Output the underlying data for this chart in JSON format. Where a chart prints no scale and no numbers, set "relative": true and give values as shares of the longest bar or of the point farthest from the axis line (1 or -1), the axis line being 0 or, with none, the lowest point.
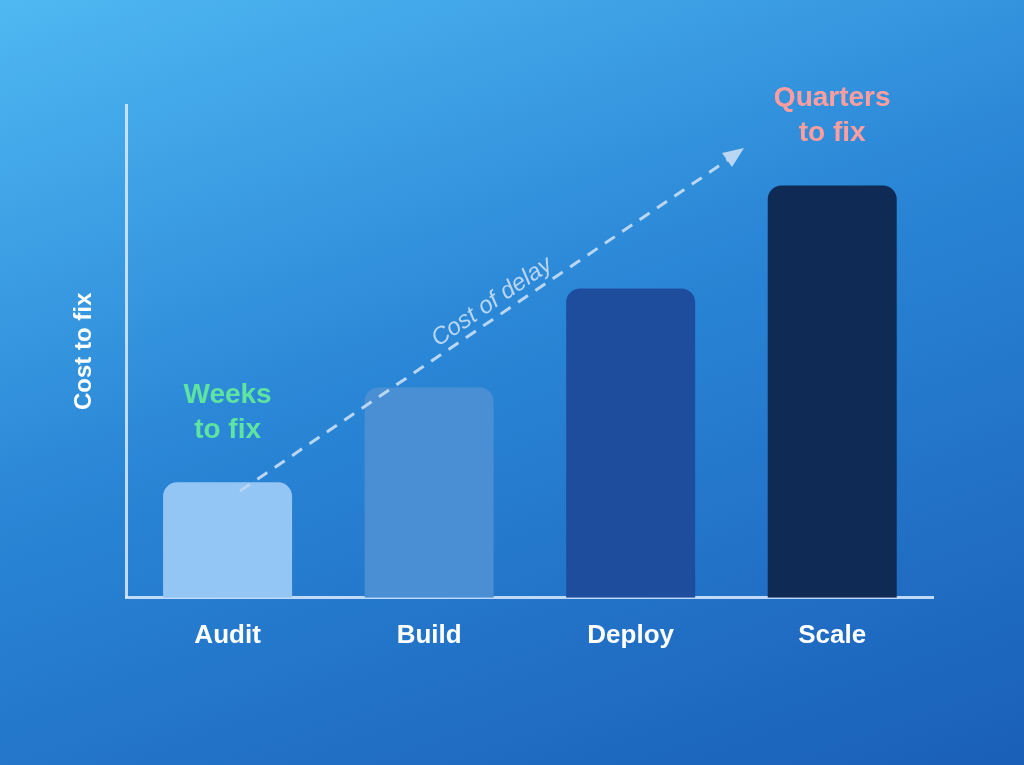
{
  "chart_data": {
    "type": "bar",
    "relative": true,
    "ylabel": "Cost to fix",
    "categories": [
      "Audit",
      "Build",
      "Deploy",
      "Scale"
    ],
    "values": [
      0.28,
      0.51,
      0.75,
      1
    ],
    "colors": [
      "#93c5f5",
      "#4a8fd4",
      "#1e4d9e",
      "#0f2a55"
    ],
    "grid": false,
    "legend": false,
    "annotations": [
      {
        "text": "Weeks to fix",
        "x": "Audit",
        "y": 0.28
      },
      {
        "text": "Quarters to fix",
        "x": "Scale",
        "y": 1
      },
      "Cost of delay"
    ]
  }
}
